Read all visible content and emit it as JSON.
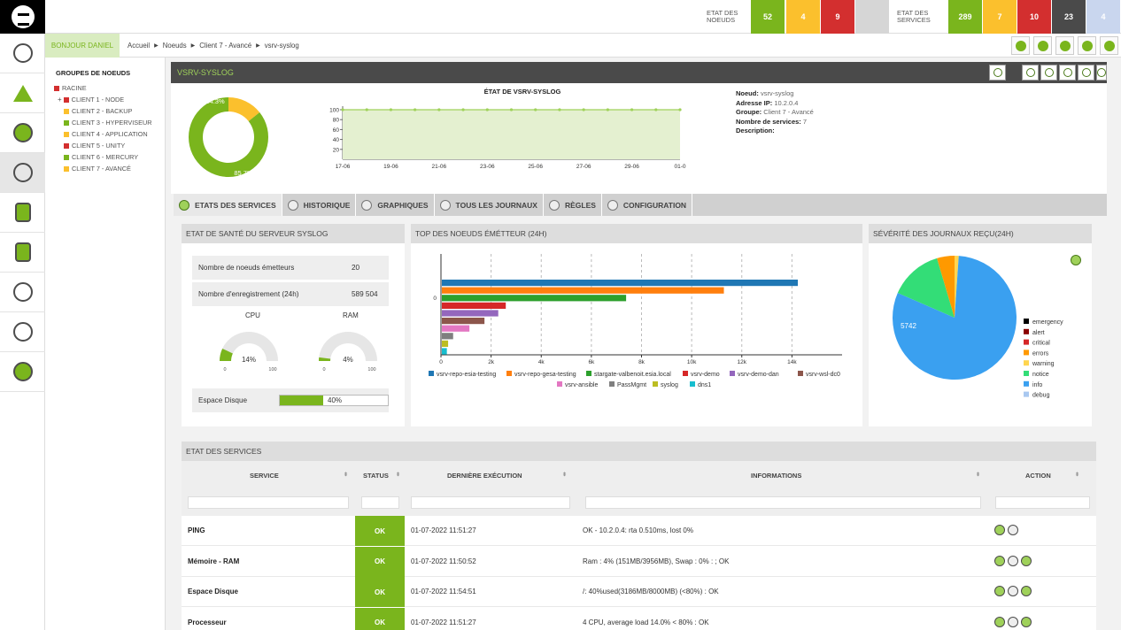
{
  "topbar": {
    "node_status_label": "ETAT DES NOEUDS",
    "node_counts": [
      "52",
      "4",
      "9",
      ""
    ],
    "service_status_label": "ETAT DES SERVICES",
    "service_counts": [
      "289",
      "7",
      "10",
      "23",
      "4"
    ],
    "colors": {
      "ok": "#7ab51d",
      "warning": "#fbc02d",
      "critical": "#d32f2f",
      "unknown": "#4a4a4a",
      "pending": "#c9d6ee",
      "empty": "#d6d6d6"
    }
  },
  "breadcrumb": {
    "greeting": "BONJOUR DANIEL",
    "items": [
      "Accueil",
      "Noeuds",
      "Client 7 - Avancé",
      "vsrv-syslog"
    ]
  },
  "tree": {
    "title": "GROUPES DE NOEUDS",
    "root": "RACINE",
    "nodes": [
      {
        "label": "CLIENT 1 - NODE",
        "color": "#d32f2f"
      },
      {
        "label": "CLIENT 2 - BACKUP",
        "color": "#fbc02d"
      },
      {
        "label": "CLIENT 3 - HYPERVISEUR",
        "color": "#7ab51d"
      },
      {
        "label": "CLIENT 4 - APPLICATION",
        "color": "#fbc02d"
      },
      {
        "label": "CLIENT 5 - UNITY",
        "color": "#d32f2f"
      },
      {
        "label": "CLIENT 6 - MERCURY",
        "color": "#7ab51d"
      },
      {
        "label": "CLIENT 7 - AVANCÉ",
        "color": "#fbc02d"
      }
    ]
  },
  "node": {
    "title": "VSRV-SYSLOG",
    "donut": {
      "ok_pct": 85.7,
      "warn_pct": 14.3,
      "ok_label": "85.7%",
      "warn_label": "14.3%"
    },
    "info": [
      {
        "key": "Noeud",
        "value": "vsrv-syslog"
      },
      {
        "key": "Adresse IP",
        "value": "10.2.0.4"
      },
      {
        "key": "Groupe",
        "value": "Client 7 - Avancé"
      },
      {
        "key": "Nombre de services",
        "value": "7"
      },
      {
        "key": "Description",
        "value": ""
      }
    ]
  },
  "tabs": [
    "ETATS DES SERVICES",
    "HISTORIQUE",
    "GRAPHIQUES",
    "TOUS LES JOURNAUX",
    "RÈGLES",
    "CONFIGURATION"
  ],
  "health": {
    "title": "ETAT DE SANTÉ DU SERVEUR SYSLOG",
    "rows": [
      {
        "label": "Nombre de noeuds émetteurs",
        "value": "20"
      },
      {
        "label": "Nombre d'enregistrement (24h)",
        "value": "589 504"
      }
    ],
    "cpu": {
      "label": "CPU",
      "value": 14,
      "text": "14%",
      "min": "0",
      "max": "100"
    },
    "ram": {
      "label": "RAM",
      "value": 4,
      "text": "4%",
      "min": "0",
      "max": "100"
    },
    "disk": {
      "label": "Espace Disque",
      "value": 40,
      "text": "40%"
    }
  },
  "top_nodes": {
    "title": "TOP DES NOEUDS ÉMÉTTEUR (24H)"
  },
  "severity": {
    "title": "SÉVÉRITÉ DES JOURNAUX REÇU(24H)"
  },
  "chart_data": [
    {
      "type": "area",
      "title": "ÉTAT DE VSRV-SYSLOG",
      "x": [
        "17-06",
        "18-06",
        "19-06",
        "20-06",
        "21-06",
        "22-06",
        "23-06",
        "24-06",
        "25-06",
        "26-06",
        "27-06",
        "28-06",
        "29-06",
        "30-06",
        "01-07"
      ],
      "xticks": [
        "17-06",
        "19-06",
        "21-06",
        "23-06",
        "25-06",
        "27-06",
        "29-06",
        "01-0"
      ],
      "values": [
        100,
        100,
        100,
        100,
        100,
        100,
        100,
        100,
        100,
        100,
        100,
        100,
        100,
        100,
        100
      ],
      "ylim": [
        0,
        100
      ],
      "yticks": [
        20,
        40,
        60,
        80,
        100
      ],
      "color": "#9fd15a"
    },
    {
      "type": "bar",
      "orientation": "horizontal",
      "category_label": "0",
      "xlim": [
        0,
        16000
      ],
      "xticks": [
        "0",
        "2k",
        "4k",
        "6k",
        "8k",
        "10k",
        "12k",
        "14k"
      ],
      "series": [
        {
          "name": "vsrv-repo-esia-testing",
          "value": 14200,
          "color": "#1f77b4"
        },
        {
          "name": "vsrv-repo-gesa-testing",
          "value": 11250,
          "color": "#ff7f0e"
        },
        {
          "name": "stargate-valbenoit.esia.local",
          "value": 7350,
          "color": "#2ca02c"
        },
        {
          "name": "vsrv-demo",
          "value": 2550,
          "color": "#d62728"
        },
        {
          "name": "vsrv-demo-dan",
          "value": 2250,
          "color": "#9467bd"
        },
        {
          "name": "vsrv-wsl-dc0",
          "value": 1700,
          "color": "#8c564b"
        },
        {
          "name": "vsrv-ansible",
          "value": 1100,
          "color": "#e377c2"
        },
        {
          "name": "PassMgmt",
          "value": 450,
          "color": "#7f7f7f"
        },
        {
          "name": "syslog",
          "value": 250,
          "color": "#bcbd22"
        },
        {
          "name": "dns1",
          "value": 200,
          "color": "#17becf"
        }
      ]
    },
    {
      "type": "pie",
      "slices": [
        {
          "name": "emergency",
          "value": 0,
          "color": "#000000"
        },
        {
          "name": "alert",
          "value": 0,
          "color": "#8b0000"
        },
        {
          "name": "critical",
          "value": 0,
          "color": "#d62728"
        },
        {
          "name": "errors",
          "value": 1900,
          "color": "#ff9900"
        },
        {
          "name": "warning",
          "value": 450,
          "color": "#ffd54f"
        },
        {
          "name": "notice",
          "value": 5742,
          "color": "#33dd77"
        },
        {
          "name": "info",
          "value": 33301,
          "color": "#3aa0f0"
        },
        {
          "name": "debug",
          "value": 0,
          "color": "#a9c8f0"
        }
      ],
      "labels": {
        "notice": "5742",
        "info": "33301"
      }
    }
  ],
  "services_table": {
    "title": "ETAT DES SERVICES",
    "columns": [
      "SERVICE",
      "STATUS",
      "DERNIÈRE EXÉCUTION",
      "INFORMATIONS",
      "ACTION"
    ],
    "rows": [
      {
        "service": "PING",
        "status": "OK",
        "last": "01-07-2022 11:51:27",
        "info": "OK - 10.2.0.4: rta 0.510ms, lost 0%",
        "actions": 2
      },
      {
        "service": "Mémoire - RAM",
        "status": "OK",
        "last": "01-07-2022 11:50:52",
        "info": "Ram : 4% (151MB/3956MB), Swap : 0% : ; OK",
        "actions": 3
      },
      {
        "service": "Espace Disque",
        "status": "OK",
        "last": "01-07-2022 11:54:51",
        "info": "/: 40%used(3186MB/8000MB) (<80%) : OK",
        "actions": 3
      },
      {
        "service": "Processeur",
        "status": "OK",
        "last": "01-07-2022 11:51:27",
        "info": "4 CPU, average load 14.0% < 80% : OK",
        "actions": 3
      }
    ]
  }
}
